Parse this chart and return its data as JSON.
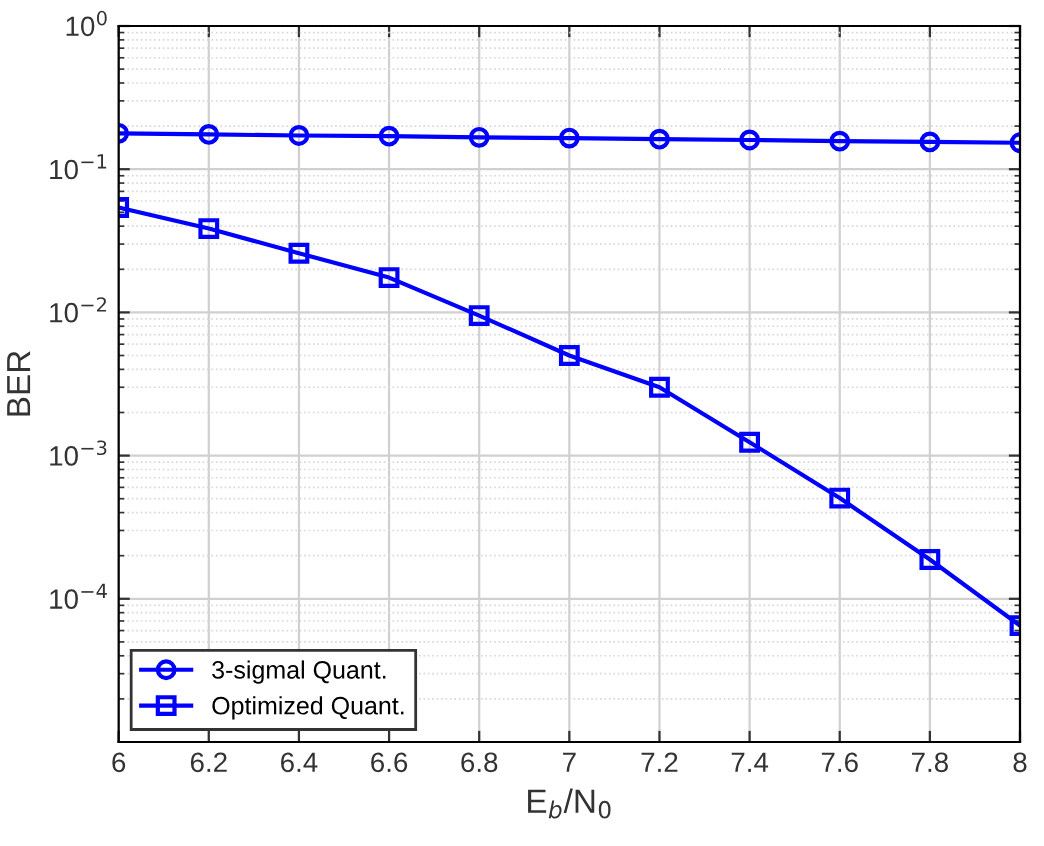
{
  "chart_data": {
    "type": "line",
    "xlabel": "E$_{b}$/N$_{0}$",
    "ylabel": "BER",
    "x": [
      6,
      6.2,
      6.4,
      6.6,
      6.8,
      7,
      7.2,
      7.4,
      7.6,
      7.8,
      8
    ],
    "series": [
      {
        "name": "3-sigmal Quant.",
        "color": "#0000ff",
        "marker": "circle",
        "values": [
          0.178,
          0.175,
          0.172,
          0.17,
          0.167,
          0.165,
          0.162,
          0.16,
          0.157,
          0.155,
          0.153
        ]
      },
      {
        "name": "Optimized Quant.",
        "color": "#0000ff",
        "marker": "square",
        "values": [
          0.054,
          0.0385,
          0.0259,
          0.0175,
          0.0095,
          0.005,
          0.003,
          0.00124,
          0.000505,
          0.000188,
          6.5e-05
        ]
      }
    ],
    "log": "y",
    "xlim": [
      6,
      8
    ],
    "xticks": [
      6,
      6.2,
      6.4,
      6.6,
      6.8,
      7,
      7.2,
      7.4,
      7.6,
      7.8,
      8
    ],
    "ylim": [
      1e-05,
      1
    ],
    "yticks": [
      {
        "value": 0.0001,
        "label": "10$^{−4}$"
      },
      {
        "value": 0.001,
        "label": "10$^{−3}$"
      },
      {
        "value": 0.01,
        "label": "10$^{−2}$"
      },
      {
        "value": 0.1,
        "label": "10$^{−1}$"
      },
      {
        "value": 1,
        "label": "10$^{0}$"
      }
    ],
    "grid": true,
    "legend": "bottom left",
    "line_style": "solid"
  }
}
